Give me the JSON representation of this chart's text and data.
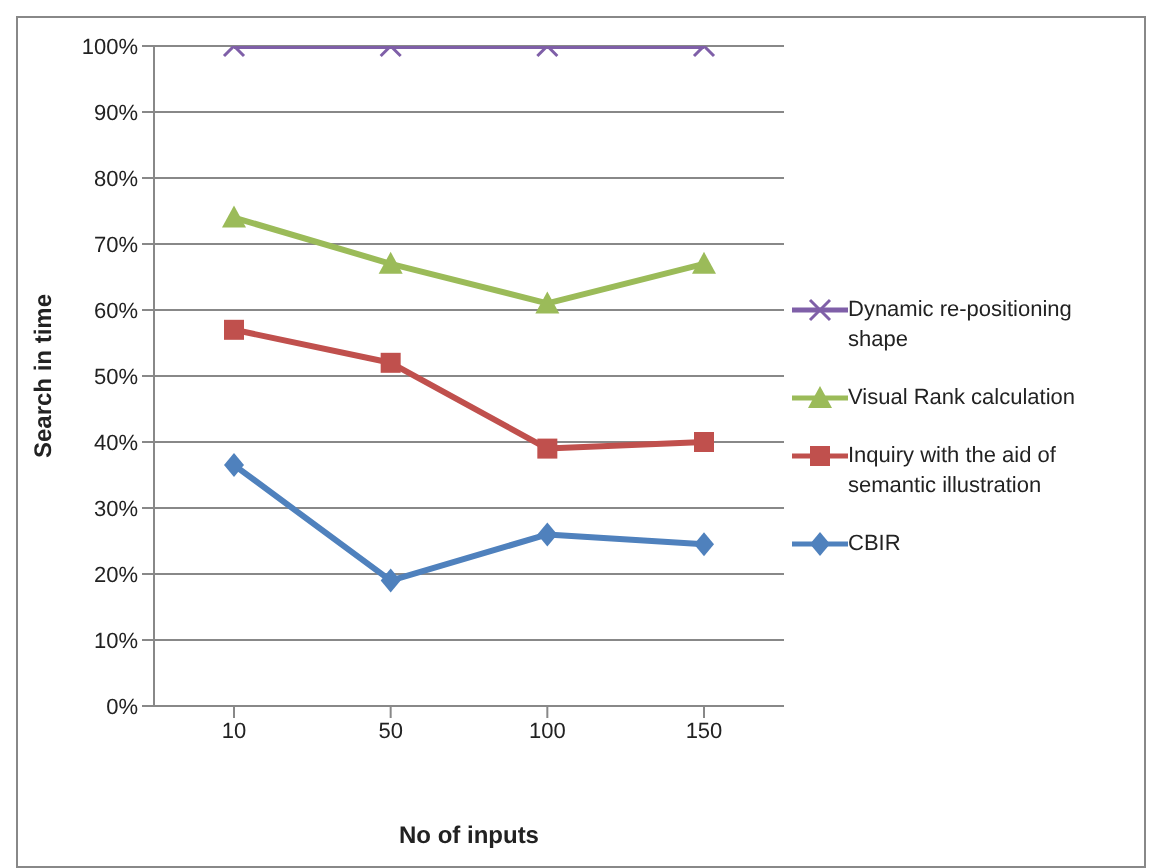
{
  "chart_data": {
    "type": "line",
    "xlabel": "No of inputs",
    "ylabel": "Search in time",
    "categories": [
      "10",
      "50",
      "100",
      "150"
    ],
    "series": [
      {
        "name": "Dynamic re-positioning shape",
        "color": "#7f5fa8",
        "marker": "cross",
        "values": [
          100,
          100,
          100,
          100
        ]
      },
      {
        "name": "Visual Rank calculation",
        "color": "#9bbb59",
        "marker": "triangle",
        "values": [
          74,
          67,
          61,
          67
        ]
      },
      {
        "name": "Inquiry with the aid of semantic illustration",
        "color": "#c0504d",
        "marker": "square",
        "values": [
          57,
          52,
          39,
          40
        ]
      },
      {
        "name": "CBIR",
        "color": "#4f81bd",
        "marker": "diamond",
        "values": [
          36.5,
          19,
          26,
          24.5
        ]
      }
    ],
    "ylim": [
      0,
      100
    ],
    "yticks": [
      {
        "value": 0,
        "label": "0%"
      },
      {
        "value": 10,
        "label": "10%"
      },
      {
        "value": 20,
        "label": "20%"
      },
      {
        "value": 30,
        "label": "30%"
      },
      {
        "value": 40,
        "label": "40%"
      },
      {
        "value": 50,
        "label": "50%"
      },
      {
        "value": 60,
        "label": "60%"
      },
      {
        "value": 70,
        "label": "70%"
      },
      {
        "value": 80,
        "label": "80%"
      },
      {
        "value": 90,
        "label": "90%"
      },
      {
        "value": 100,
        "label": "100%"
      }
    ],
    "grid": "y",
    "legend": "right",
    "line_style": "solid"
  }
}
